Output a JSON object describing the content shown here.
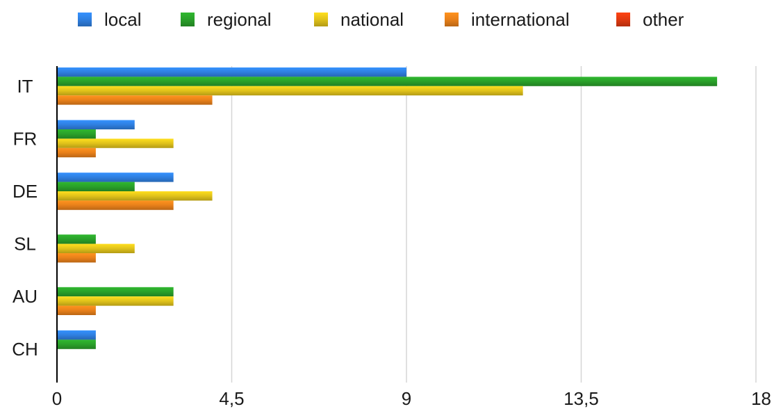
{
  "chart_data": {
    "type": "bar",
    "orientation": "horizontal",
    "categories": [
      "IT",
      "FR",
      "DE",
      "SL",
      "AU",
      "CH"
    ],
    "series": [
      {
        "name": "local",
        "color": "#2f7fe0",
        "values": [
          9,
          2,
          3,
          0,
          0,
          1
        ]
      },
      {
        "name": "regional",
        "color": "#2aa02a",
        "values": [
          17,
          1,
          2,
          1,
          3,
          1
        ]
      },
      {
        "name": "national",
        "color": "#e0c21a",
        "values": [
          12,
          3,
          4,
          2,
          3,
          0
        ]
      },
      {
        "name": "international",
        "color": "#e8801a",
        "values": [
          4,
          1,
          3,
          1,
          1,
          0
        ]
      },
      {
        "name": "other",
        "color": "#e03a10",
        "values": [
          0,
          0,
          0,
          0,
          0,
          0
        ]
      }
    ],
    "xlim": [
      0,
      18
    ],
    "xticks": [
      "0",
      "4,5",
      "9",
      "13,5",
      "18"
    ],
    "xtick_values": [
      0,
      4.5,
      9,
      13.5,
      18
    ],
    "grid": true,
    "legend_position": "top"
  }
}
